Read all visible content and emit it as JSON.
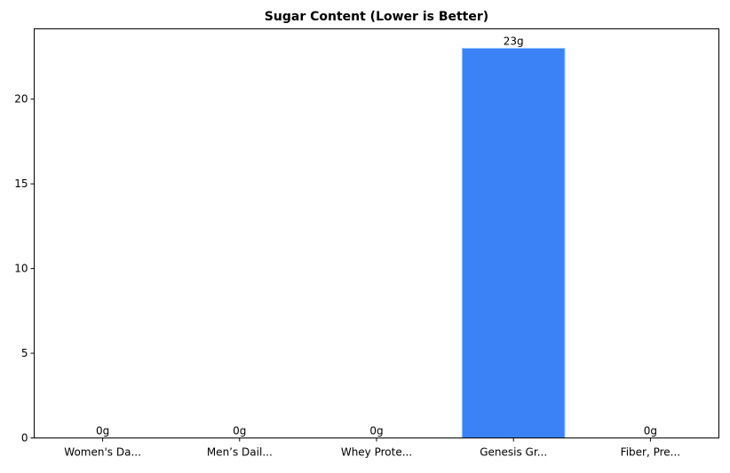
{
  "chart_data": {
    "type": "bar",
    "title": "Sugar Content (Lower is Better)",
    "xlabel": "",
    "ylabel": "",
    "categories": [
      "Women's Da...",
      "Men’s Dail...",
      "Whey Prote...",
      "Genesis Gr...",
      "Fiber, Pre..."
    ],
    "values": [
      0,
      0,
      0,
      23,
      0
    ],
    "data_labels": [
      "0g",
      "0g",
      "0g",
      "23g",
      "0g"
    ],
    "ylim": [
      0,
      24.15
    ],
    "yticks": [
      0,
      5,
      10,
      15,
      20
    ],
    "grid": false,
    "bar_color": "#3b82f6",
    "bar_edge_color": "#93c5fd"
  }
}
